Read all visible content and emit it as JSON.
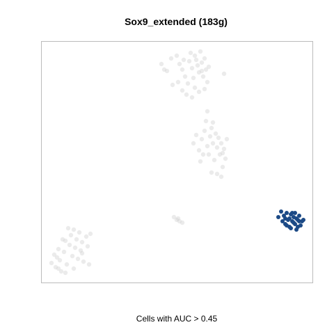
{
  "chart_data": {
    "type": "scatter",
    "title": "Sox9_extended (183g)",
    "xlabel": "Cells with AUC > 0.45",
    "ylabel": "",
    "grid": false,
    "legend": "none",
    "colors": {
      "background": "#d3d3d3",
      "highlight": "#1c4a86",
      "frame": "#bbbbbb"
    },
    "series": [
      {
        "role": "background",
        "points": [
          [
            232,
            92
          ],
          [
            240,
            102
          ],
          [
            246,
            84
          ],
          [
            254,
            80
          ],
          [
            258,
            92
          ],
          [
            262,
            100
          ],
          [
            266,
            110
          ],
          [
            270,
            120
          ],
          [
            272,
            88
          ],
          [
            274,
            76
          ],
          [
            276,
            98
          ],
          [
            278,
            112
          ],
          [
            280,
            126
          ],
          [
            282,
            86
          ],
          [
            284,
            94
          ],
          [
            286,
            104
          ],
          [
            288,
            74
          ],
          [
            290,
            90
          ],
          [
            292,
            110
          ],
          [
            294,
            84
          ],
          [
            296,
            100
          ],
          [
            298,
            118
          ],
          [
            300,
            96
          ],
          [
            256,
            118
          ],
          [
            262,
            130
          ],
          [
            268,
            136
          ],
          [
            276,
            140
          ],
          [
            286,
            132
          ],
          [
            294,
            128
          ],
          [
            322,
            106
          ],
          [
            248,
            122
          ],
          [
            236,
            100
          ],
          [
            264,
            86
          ],
          [
            280,
            80
          ],
          [
            290,
            102
          ],
          [
            278,
            206
          ],
          [
            282,
            194
          ],
          [
            286,
            216
          ],
          [
            290,
            200
          ],
          [
            294,
            188
          ],
          [
            296,
            174
          ],
          [
            298,
            210
          ],
          [
            300,
            222
          ],
          [
            302,
            196
          ],
          [
            304,
            184
          ],
          [
            306,
            206
          ],
          [
            308,
            230
          ],
          [
            310,
            192
          ],
          [
            312,
            212
          ],
          [
            314,
            198
          ],
          [
            316,
            222
          ],
          [
            318,
            206
          ],
          [
            320,
            240
          ],
          [
            322,
            214
          ],
          [
            324,
            228
          ],
          [
            326,
            200
          ],
          [
            298,
            160
          ],
          [
            304,
            248
          ],
          [
            312,
            250
          ],
          [
            288,
            232
          ],
          [
            318,
            254
          ],
          [
            292,
            222
          ],
          [
            306,
            176
          ],
          [
            320,
            220
          ],
          [
            250,
            312
          ],
          [
            254,
            316
          ],
          [
            258,
            318
          ],
          [
            262,
            320
          ],
          [
            256,
            314
          ],
          [
            74,
            378
          ],
          [
            78,
            366
          ],
          [
            80,
            384
          ],
          [
            84,
            358
          ],
          [
            86,
            374
          ],
          [
            88,
            390
          ],
          [
            92,
            362
          ],
          [
            94,
            346
          ],
          [
            96,
            380
          ],
          [
            100,
            352
          ],
          [
            102,
            338
          ],
          [
            104,
            368
          ],
          [
            106,
            386
          ],
          [
            108,
            356
          ],
          [
            110,
            344
          ],
          [
            112,
            372
          ],
          [
            114,
            334
          ],
          [
            116,
            360
          ],
          [
            118,
            348
          ],
          [
            120,
            376
          ],
          [
            124,
            340
          ],
          [
            126,
            354
          ],
          [
            128,
            380
          ],
          [
            130,
            336
          ],
          [
            98,
            328
          ],
          [
            90,
            344
          ],
          [
            84,
            386
          ],
          [
            82,
            370
          ],
          [
            106,
            330
          ],
          [
            94,
            392
          ],
          [
            118,
            364
          ]
        ]
      },
      {
        "role": "highlight",
        "points": [
          [
            400,
            312
          ],
          [
            404,
            304
          ],
          [
            406,
            318
          ],
          [
            408,
            310
          ],
          [
            410,
            322
          ],
          [
            412,
            306
          ],
          [
            414,
            316
          ],
          [
            416,
            326
          ],
          [
            418,
            308
          ],
          [
            420,
            318
          ],
          [
            422,
            312
          ],
          [
            424,
            322
          ],
          [
            426,
            330
          ],
          [
            428,
            316
          ],
          [
            430,
            310
          ],
          [
            432,
            324
          ],
          [
            434,
            318
          ],
          [
            412,
            324
          ],
          [
            418,
            328
          ],
          [
            424,
            306
          ],
          [
            428,
            326
          ],
          [
            416,
            314
          ],
          [
            422,
            320
          ],
          [
            426,
            314
          ],
          [
            410,
            314
          ],
          [
            420,
            306
          ],
          [
            430,
            318
          ],
          [
            436,
            316
          ]
        ]
      }
    ]
  }
}
